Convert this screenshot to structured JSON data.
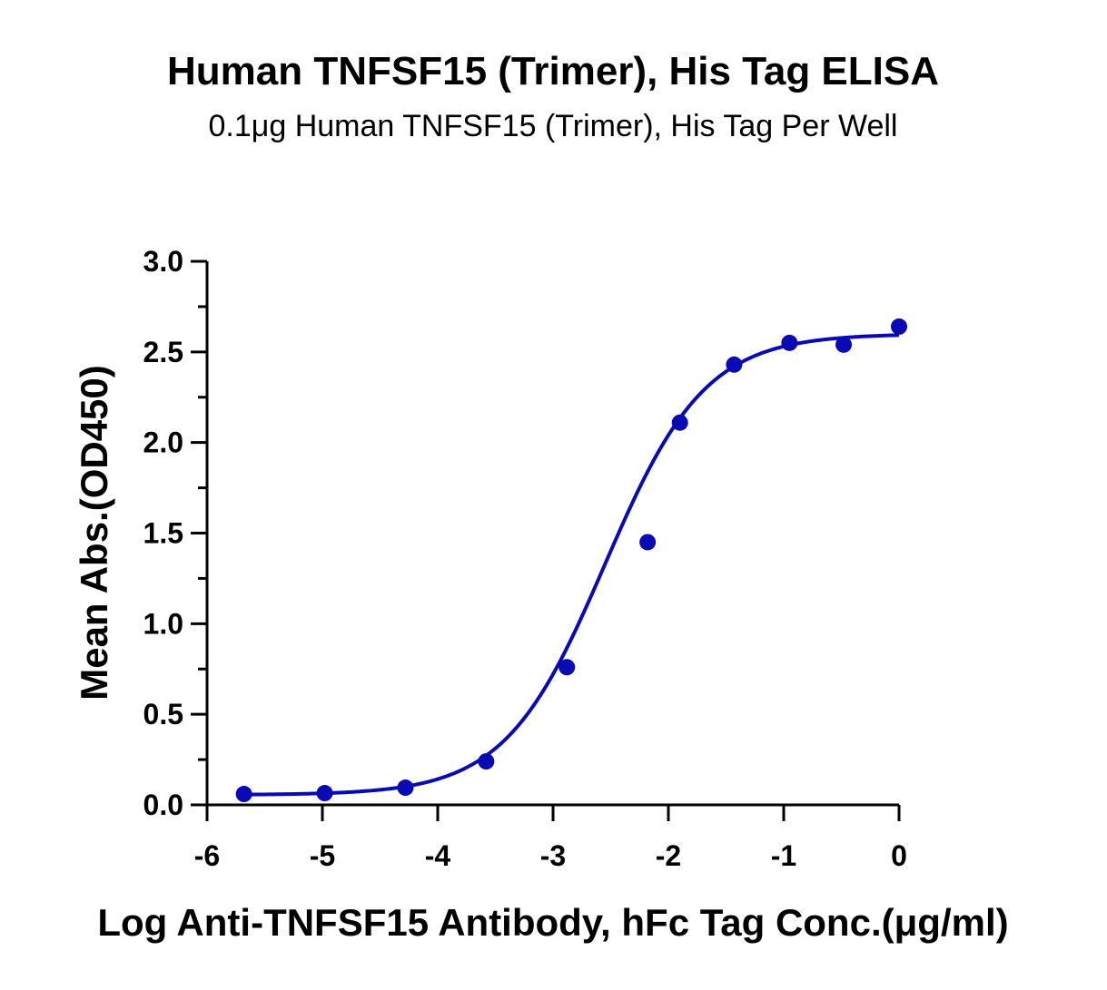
{
  "chart_data": {
    "type": "scatter",
    "title": "Human TNFSF15 (Trimer), His Tag ELISA",
    "subtitle": "0.1μg Human TNFSF15 (Trimer), His Tag Per Well",
    "xlabel": "Log Anti-TNFSF15 Antibody, hFc Tag Conc.(μg/ml)",
    "ylabel": "Mean Abs.(OD450)",
    "xlim": [
      -6,
      0
    ],
    "ylim": [
      0,
      3.0
    ],
    "x_ticks": [
      "-6",
      "-5",
      "-4",
      "-3",
      "-2",
      "-1",
      "0"
    ],
    "y_ticks": [
      "0.0",
      "0.5",
      "1.0",
      "1.5",
      "2.0",
      "2.5",
      "3.0"
    ],
    "grid": false,
    "series": [
      {
        "color": "#0a0ab4",
        "points": [
          {
            "x": -5.68,
            "y": 0.06
          },
          {
            "x": -4.98,
            "y": 0.065
          },
          {
            "x": -4.28,
            "y": 0.095
          },
          {
            "x": -3.58,
            "y": 0.24
          },
          {
            "x": -2.88,
            "y": 0.76
          },
          {
            "x": -2.18,
            "y": 1.45
          },
          {
            "x": -1.9,
            "y": 2.11
          },
          {
            "x": -1.43,
            "y": 2.43
          },
          {
            "x": -0.95,
            "y": 2.55
          },
          {
            "x": -0.48,
            "y": 2.54
          },
          {
            "x": 0.0,
            "y": 2.64
          }
        ],
        "fit": {
          "model": "4PL",
          "bottom": 0.055,
          "top": 2.6,
          "logEC50": -2.55,
          "hillslope": 1.0
        }
      }
    ]
  }
}
